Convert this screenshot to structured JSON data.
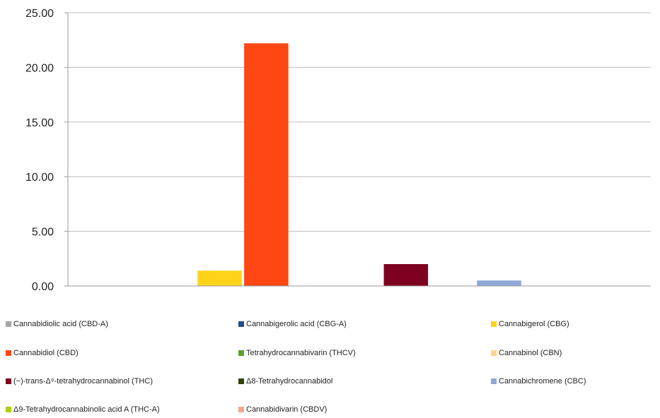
{
  "chart_data": {
    "type": "bar",
    "title": "",
    "xlabel": "",
    "ylabel": "",
    "ylim": [
      0,
      25
    ],
    "yticks": [
      "0.00",
      "5.00",
      "10.00",
      "15.00",
      "20.00",
      "25.00"
    ],
    "grid": true,
    "legend_position": "bottom",
    "series": [
      {
        "name": "Cannabidiolic acid (CBD-A)",
        "value": 0,
        "color": "#a6a6a6"
      },
      {
        "name": "Cannabigerolic acid (CBG-A)",
        "value": 0,
        "color": "#1f4e8c"
      },
      {
        "name": "Cannabigerol (CBG)",
        "value": 1.4,
        "color": "#ffd31a"
      },
      {
        "name": "Cannabidiol (CBD)",
        "value": 22.2,
        "color": "#ff4713"
      },
      {
        "name": "Tetrahydrocannabivarin (THCV)",
        "value": 0,
        "color": "#5aa02c"
      },
      {
        "name": "Cannabinol (CBN)",
        "value": 0,
        "color": "#ffd38a"
      },
      {
        "name": "(−)-trans-Δ⁹-tetrahydrocannabinol (THC)",
        "value": 2.0,
        "color": "#7e0021"
      },
      {
        "name": "Δ8-Tetrahydrocannabidol",
        "value": 0,
        "color": "#314004"
      },
      {
        "name": "Cannabichromene (CBC)",
        "value": 0.5,
        "color": "#8fa8d6"
      },
      {
        "name": "Δ9-Tetrahydrocannabinolic acid A (THC-A)",
        "value": 0,
        "color": "#aecf00"
      },
      {
        "name": "Cannabidivarin (CBDV)",
        "value": 0,
        "color": "#f4a58a"
      }
    ]
  }
}
